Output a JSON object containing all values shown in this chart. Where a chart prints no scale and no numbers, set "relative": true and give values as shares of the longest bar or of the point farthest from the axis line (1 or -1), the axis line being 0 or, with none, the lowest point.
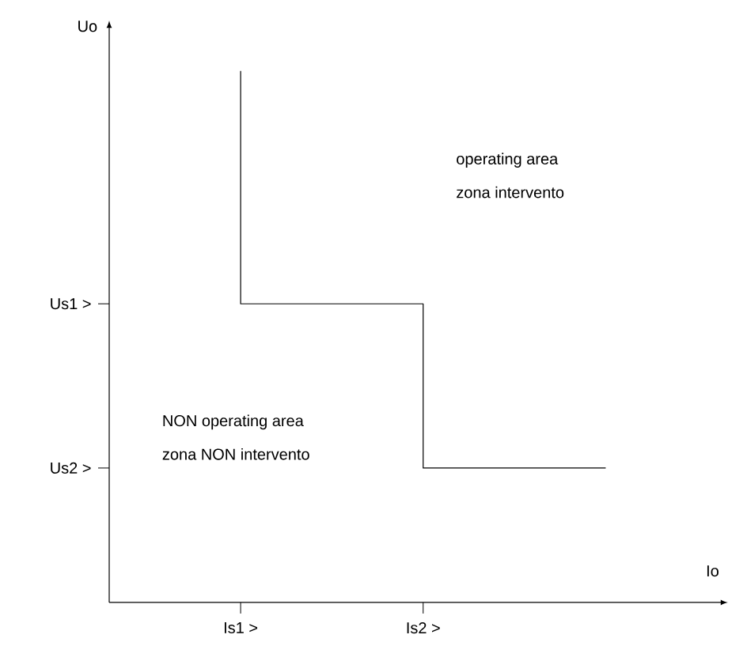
{
  "chart_data": {
    "type": "step",
    "relative": true,
    "categories": [
      "Is1 >",
      "Is2 >",
      null
    ],
    "values": [
      1,
      0.562,
      0.253
    ],
    "color": "#000000",
    "xlabel": "Io",
    "ylabel": "Uo",
    "annotations": [
      "Us1 >",
      "Us2 >",
      "operating area",
      "zona intervento",
      "NON operating area",
      "zona NON intervento"
    ]
  }
}
